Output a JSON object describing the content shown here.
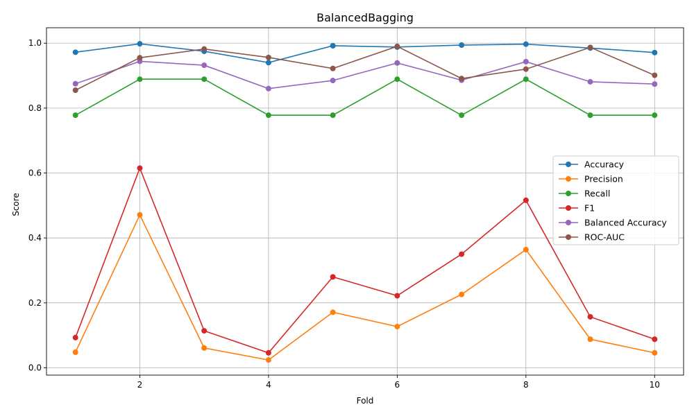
{
  "chart_data": {
    "type": "line",
    "title": "BalancedBagging",
    "xlabel": "Fold",
    "ylabel": "Score",
    "x": [
      1,
      2,
      3,
      4,
      5,
      6,
      7,
      8,
      9,
      10
    ],
    "xlim": [
      0.55,
      10.45
    ],
    "ylim": [
      -0.0225,
      1.0475
    ],
    "xticks": [
      2,
      4,
      6,
      8,
      10
    ],
    "yticks": [
      0.0,
      0.2,
      0.4,
      0.6,
      0.8,
      1.0
    ],
    "xtick_labels": [
      "2",
      "4",
      "6",
      "8",
      "10"
    ],
    "ytick_labels": [
      "0.0",
      "0.2",
      "0.4",
      "0.6",
      "0.8",
      "1.0"
    ],
    "grid": true,
    "legend_position": "center-right",
    "series": [
      {
        "name": "Accuracy",
        "color": "#1f77b4",
        "values": [
          0.972,
          0.998,
          0.975,
          0.94,
          0.992,
          0.988,
          0.994,
          0.997,
          0.985,
          0.971
        ]
      },
      {
        "name": "Precision",
        "color": "#ff7f0e",
        "values": [
          0.048,
          0.471,
          0.061,
          0.024,
          0.171,
          0.127,
          0.226,
          0.364,
          0.088,
          0.046
        ]
      },
      {
        "name": "Recall",
        "color": "#2ca02c",
        "values": [
          0.778,
          0.889,
          0.889,
          0.778,
          0.778,
          0.889,
          0.778,
          0.889,
          0.778,
          0.778
        ]
      },
      {
        "name": "F1",
        "color": "#d62728",
        "values": [
          0.093,
          0.615,
          0.114,
          0.046,
          0.28,
          0.222,
          0.35,
          0.516,
          0.157,
          0.088
        ]
      },
      {
        "name": "Balanced Accuracy",
        "color": "#9467bd",
        "values": [
          0.875,
          0.944,
          0.932,
          0.86,
          0.885,
          0.939,
          0.886,
          0.943,
          0.881,
          0.874
        ]
      },
      {
        "name": "ROC-AUC",
        "color": "#8c564b",
        "values": [
          0.855,
          0.955,
          0.982,
          0.956,
          0.922,
          0.99,
          0.891,
          0.92,
          0.987,
          0.901
        ]
      }
    ]
  }
}
